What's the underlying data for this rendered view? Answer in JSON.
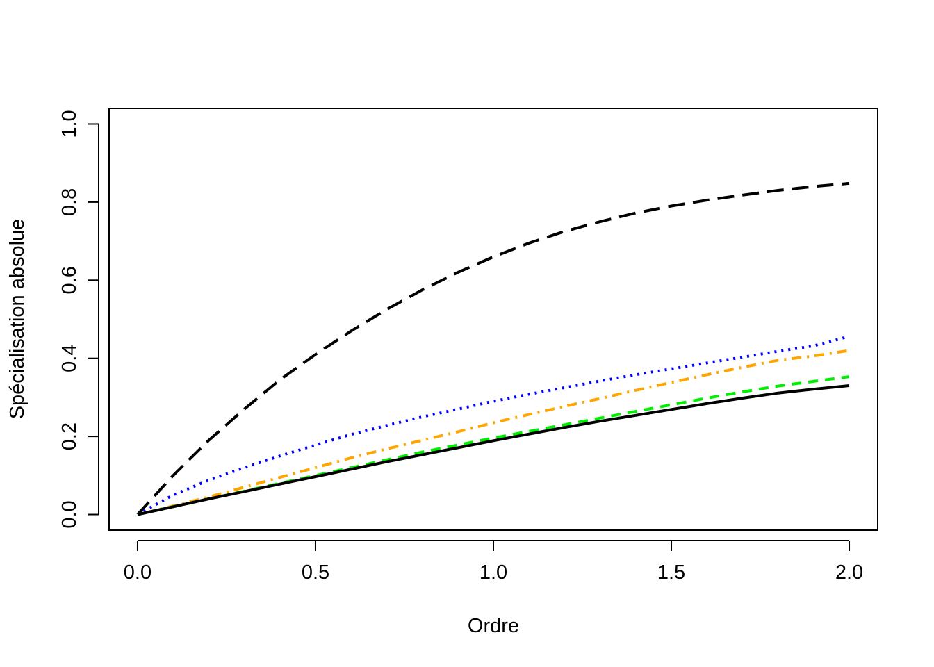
{
  "chart_data": {
    "type": "line",
    "title": "",
    "xlabel": "Ordre",
    "ylabel": "Spécialisation absolue",
    "xlim": [
      -0.08,
      2.08
    ],
    "ylim": [
      -0.04,
      1.04
    ],
    "x_ticks": [
      0.0,
      0.5,
      1.0,
      1.5,
      2.0
    ],
    "x_tick_labels": [
      "0.0",
      "0.5",
      "1.0",
      "1.5",
      "2.0"
    ],
    "y_ticks": [
      0.0,
      0.2,
      0.4,
      0.6,
      0.8,
      1.0
    ],
    "y_tick_labels": [
      "0.0",
      "0.2",
      "0.4",
      "0.6",
      "0.8",
      "1.0"
    ],
    "grid": false,
    "legend": "none",
    "x": [
      0.0,
      0.1,
      0.2,
      0.3,
      0.4,
      0.5,
      0.6,
      0.7,
      0.8,
      0.9,
      1.0,
      1.1,
      1.2,
      1.3,
      1.4,
      1.5,
      1.6,
      1.7,
      1.8,
      1.9,
      2.0
    ],
    "series": [
      {
        "color": "#000000",
        "line_style": "longdash",
        "values": [
          0.0,
          0.1,
          0.19,
          0.27,
          0.345,
          0.41,
          0.47,
          0.525,
          0.575,
          0.62,
          0.66,
          0.695,
          0.725,
          0.75,
          0.772,
          0.79,
          0.805,
          0.818,
          0.83,
          0.84,
          0.848
        ]
      },
      {
        "color": "#0000ff",
        "line_style": "dotted",
        "values": [
          0.0,
          0.05,
          0.088,
          0.12,
          0.15,
          0.178,
          0.205,
          0.228,
          0.25,
          0.27,
          0.29,
          0.308,
          0.325,
          0.342,
          0.358,
          0.373,
          0.388,
          0.403,
          0.418,
          0.432,
          0.456
        ]
      },
      {
        "color": "#ffa500",
        "line_style": "dotdash",
        "values": [
          0.0,
          0.022,
          0.045,
          0.07,
          0.095,
          0.12,
          0.145,
          0.168,
          0.19,
          0.212,
          0.235,
          0.256,
          0.277,
          0.297,
          0.318,
          0.338,
          0.358,
          0.377,
          0.395,
          0.406,
          0.42
        ]
      },
      {
        "color": "#00ee00",
        "line_style": "dashed",
        "values": [
          0.0,
          0.02,
          0.04,
          0.06,
          0.08,
          0.1,
          0.12,
          0.14,
          0.16,
          0.178,
          0.196,
          0.213,
          0.23,
          0.247,
          0.264,
          0.281,
          0.298,
          0.314,
          0.329,
          0.341,
          0.353
        ]
      },
      {
        "color": "#000000",
        "line_style": "solid",
        "values": [
          0.0,
          0.02,
          0.04,
          0.059,
          0.078,
          0.097,
          0.116,
          0.135,
          0.153,
          0.171,
          0.189,
          0.206,
          0.223,
          0.239,
          0.254,
          0.269,
          0.284,
          0.298,
          0.311,
          0.321,
          0.33
        ]
      }
    ]
  }
}
